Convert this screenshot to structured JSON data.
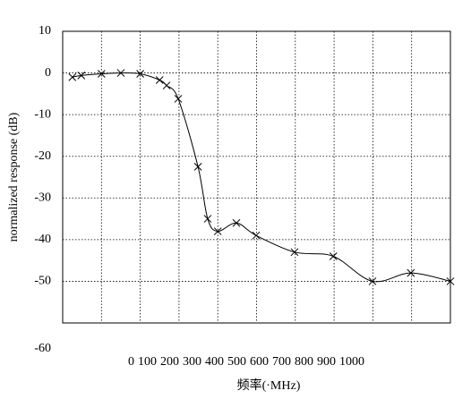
{
  "chart_data": {
    "type": "line",
    "xlabel": "频率(·MHz)",
    "ylabel": "normalized response (dB)",
    "x": [
      25,
      48,
      100,
      150,
      200,
      250,
      268,
      298,
      349,
      374,
      400,
      448,
      499,
      598,
      698,
      799,
      898,
      1000
    ],
    "values": [
      -1,
      -0.6,
      -0.2,
      0,
      -0.2,
      -1.7,
      -3,
      -6.2,
      -22.5,
      -35,
      -38,
      -36,
      -39,
      -43,
      -44,
      -50,
      -48,
      -50
    ],
    "color": "#000000",
    "marker": "x",
    "smooth": true,
    "grid": true,
    "xlim": [
      0,
      1000
    ],
    "xticks": [
      0,
      100,
      200,
      300,
      400,
      500,
      600,
      700,
      800,
      900,
      1000
    ],
    "ylim": [
      -60,
      10
    ],
    "yticks": [
      -60,
      -50,
      -40,
      -30,
      -20,
      -10,
      0,
      10
    ]
  }
}
